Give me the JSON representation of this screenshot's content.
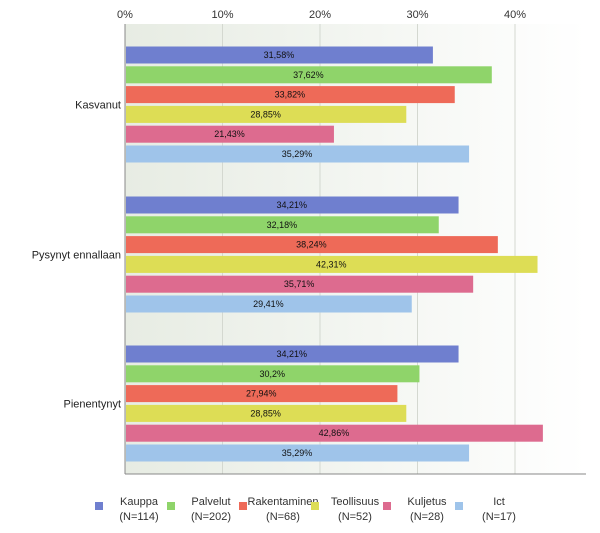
{
  "chart_data": {
    "type": "bar",
    "orientation": "horizontal",
    "categories": [
      "Kasvanut",
      "Pysynyt ennallaan",
      "Pienentynyt"
    ],
    "series": [
      {
        "name": "Kauppa",
        "n_label": "(N=114)",
        "color": "#6f7fcf",
        "values": [
          31.58,
          34.21,
          34.21
        ],
        "labels": [
          "31,58%",
          "34,21%",
          "34,21%"
        ]
      },
      {
        "name": "Palvelut",
        "n_label": "(N=202)",
        "color": "#8fd46a",
        "values": [
          37.62,
          32.18,
          30.2
        ],
        "labels": [
          "37,62%",
          "32,18%",
          "30,2%"
        ]
      },
      {
        "name": "Rakentaminen",
        "n_label": "(N=68)",
        "color": "#ee6a58",
        "values": [
          33.82,
          38.24,
          27.94
        ],
        "labels": [
          "33,82%",
          "38,24%",
          "27,94%"
        ]
      },
      {
        "name": "Teollisuus",
        "n_label": "(N=52)",
        "color": "#dddd55",
        "values": [
          28.85,
          42.31,
          28.85
        ],
        "labels": [
          "28,85%",
          "42,31%",
          "28,85%"
        ]
      },
      {
        "name": "Kuljetus",
        "n_label": "(N=28)",
        "color": "#dd6b8f",
        "values": [
          21.43,
          35.71,
          42.86
        ],
        "labels": [
          "21,43%",
          "35,71%",
          "42,86%"
        ]
      },
      {
        "name": "Ict",
        "n_label": "(N=17)",
        "color": "#9fc4ea",
        "values": [
          35.29,
          29.41,
          35.29
        ],
        "labels": [
          "35,29%",
          "29,41%",
          "35,29%"
        ]
      }
    ],
    "x_ticks": [
      "0%",
      "10%",
      "20%",
      "30%",
      "40%"
    ],
    "xlim": [
      0,
      47.5
    ],
    "grid": true,
    "legend_position": "bottom"
  }
}
